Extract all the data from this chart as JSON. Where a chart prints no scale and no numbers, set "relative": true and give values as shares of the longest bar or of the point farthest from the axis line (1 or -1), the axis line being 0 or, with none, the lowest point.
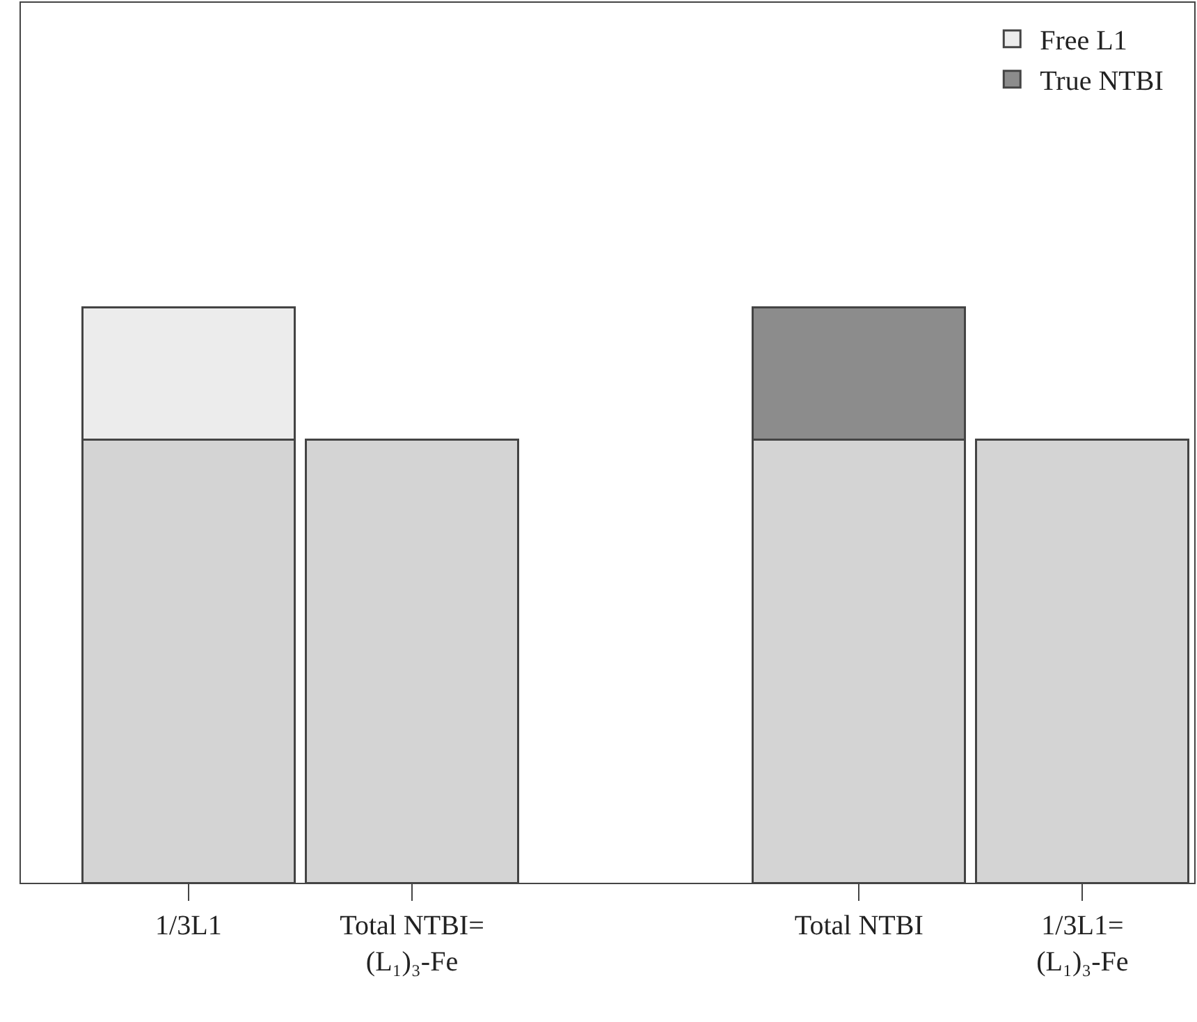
{
  "chart_data": {
    "type": "bar",
    "relative": true,
    "stacked": true,
    "categories": [
      "1/3L1",
      "Total NTBI=\n(L₁)₃-Fe",
      null,
      "Total NTBI",
      "1/3L1=\n(L₁)₃-Fe"
    ],
    "series": [
      {
        "color": "#d4d4d4",
        "values": [
          0.77,
          0.77,
          null,
          0.77,
          0.77
        ]
      },
      {
        "name": "Free L1",
        "color": "#ececec",
        "values": [
          0.23,
          null,
          null,
          null,
          null
        ]
      },
      {
        "name": "True NTBI",
        "color": "#8c8c8c",
        "values": [
          null,
          null,
          null,
          0.23,
          null
        ]
      }
    ],
    "legend": "top right"
  }
}
